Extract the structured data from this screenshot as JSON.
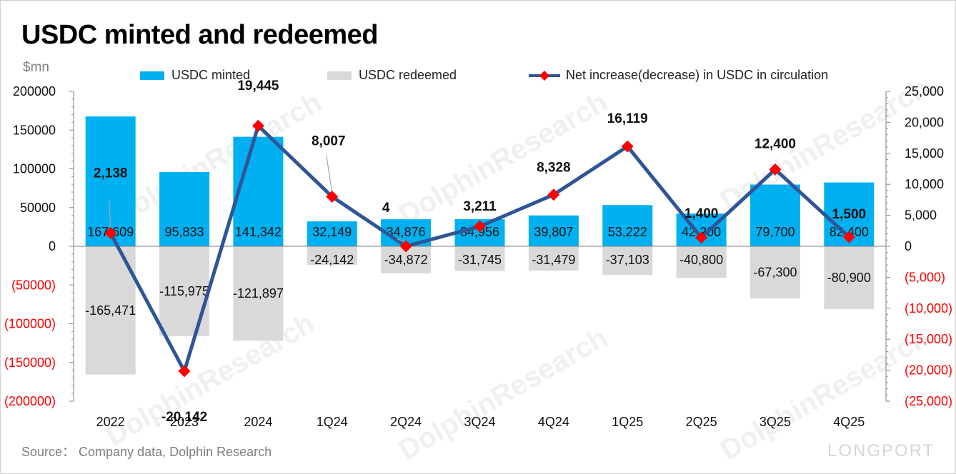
{
  "title": "USDC minted and redeemed",
  "unit_label": "$mn",
  "source": "Source： Company data, Dolphin Research",
  "watermark": "DolphinResearch",
  "brand": "LONGPORT",
  "colors": {
    "minted": "#00b0f0",
    "redeemed": "#d9d9d9",
    "net_line": "#2f5597",
    "net_marker": "#ff0000",
    "negative_tick": "#ff0000"
  },
  "chart_data": {
    "type": "bar+line",
    "categories": [
      "2022",
      "2023",
      "2024",
      "1Q24",
      "2Q24",
      "3Q24",
      "4Q24",
      "1Q25",
      "2Q25",
      "3Q25",
      "4Q25"
    ],
    "series": [
      {
        "name": "USDC minted",
        "axis": "left",
        "type": "bar",
        "values": [
          167609,
          95833,
          141342,
          32149,
          34876,
          34956,
          39807,
          53222,
          42200,
          79700,
          82400
        ],
        "labels": [
          "167,609",
          "95,833",
          "141,342",
          "32,149",
          "34,876",
          "34,956",
          "39,807",
          "53,222",
          "42,200",
          "79,700",
          "82,400"
        ]
      },
      {
        "name": "USDC redeemed",
        "axis": "left",
        "type": "bar",
        "values": [
          -165471,
          -115975,
          -121897,
          -24142,
          -34872,
          -31745,
          -31479,
          -37103,
          -40800,
          -67300,
          -80900
        ],
        "labels": [
          "-165,471",
          "-115,975",
          "-121,897",
          "-24,142",
          "-34,872",
          "-31,745",
          "-31,479",
          "-37,103",
          "-40,800",
          "-67,300",
          "-80,900"
        ]
      },
      {
        "name": "Net increase(decrease) in USDC in circulation",
        "axis": "right",
        "type": "line",
        "values": [
          2138,
          -20142,
          19445,
          8007,
          4,
          3211,
          8328,
          16119,
          1400,
          12400,
          1500
        ],
        "labels": [
          "2,138",
          "-20,142",
          "19,445",
          "8,007",
          "4",
          "3,211",
          "8,328",
          "16,119",
          "1,400",
          "12,400",
          "1,500"
        ]
      }
    ],
    "left_axis": {
      "min": -200000,
      "max": 200000,
      "step": 50000,
      "tick_labels": [
        "200000",
        "150000",
        "100000",
        "50000",
        "0",
        "(50000)",
        "(100000)",
        "(150000)",
        "(200000)"
      ]
    },
    "right_axis": {
      "min": -25000,
      "max": 25000,
      "step": 5000,
      "tick_labels": [
        "25,000",
        "20,000",
        "15,000",
        "10,000",
        "5,000",
        "0",
        "(5,000)",
        "(10,000)",
        "(15,000)",
        "(20,000)",
        "(25,000)"
      ]
    },
    "legend": [
      "USDC minted",
      "USDC redeemed",
      "Net increase(decrease) in USDC in circulation"
    ],
    "legend_position": "top"
  }
}
